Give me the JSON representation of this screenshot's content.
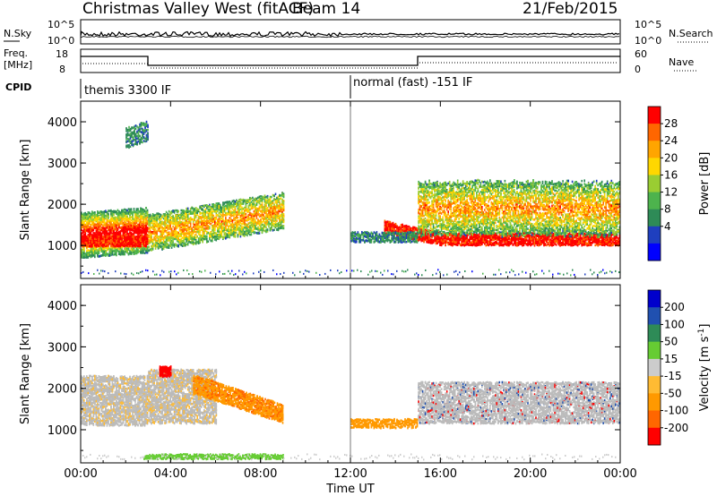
{
  "header": {
    "station": "Christmas Valley West (fitACF)",
    "beam": "Beam 14",
    "date": "21/Feb/2015"
  },
  "noise_panel": {
    "left_label": "N.Sky",
    "right_label": "N.Search",
    "left_ticks": [
      "10^5",
      "10^0"
    ],
    "right_ticks": [
      "10^5",
      "10^0"
    ]
  },
  "freq_panel": {
    "left_label_1": "Freq.",
    "left_label_2": "[MHz]",
    "right_label": "Nave",
    "left_ticks": [
      "18",
      "8"
    ],
    "right_ticks": [
      "60",
      "0"
    ]
  },
  "cpid": {
    "label": "CPID",
    "segments": [
      {
        "name": "themis 3300 IF",
        "start_hour": 0
      },
      {
        "name": "normal (fast) -151 IF",
        "start_hour": 12
      }
    ]
  },
  "chart_data": [
    {
      "type": "heatmap",
      "title": "",
      "xlabel": "Time UT",
      "ylabel": "Slant Range [km]",
      "xlim": [
        0,
        24
      ],
      "ylim": [
        200,
        4500
      ],
      "x_ticks": [
        "00:00",
        "04:00",
        "08:00",
        "12:00",
        "16:00",
        "20:00",
        "00:00"
      ],
      "y_ticks": [
        1000,
        2000,
        3000,
        4000
      ],
      "colorbar": {
        "label": "Power [dB]",
        "ticks": [
          "28",
          "24",
          "20",
          "16",
          "12",
          "8",
          "4"
        ],
        "colors": [
          "#0000ff",
          "#1f3fbf",
          "#2e8b57",
          "#4db34d",
          "#9acd32",
          "#ffd700",
          "#ffa500",
          "#ff6600",
          "#ff0000"
        ]
      }
    },
    {
      "type": "heatmap",
      "title": "",
      "xlabel": "Time UT",
      "ylabel": "Slant Range [km]",
      "xlim": [
        0,
        24
      ],
      "ylim": [
        200,
        4500
      ],
      "x_ticks": [
        "00:00",
        "04:00",
        "08:00",
        "12:00",
        "16:00",
        "20:00",
        "00:00"
      ],
      "y_ticks": [
        1000,
        2000,
        3000,
        4000
      ],
      "colorbar": {
        "label": "Velocity [m s",
        "label_sup": "-1",
        "label_close": "]",
        "ticks": [
          "200",
          "100",
          "50",
          "15",
          "-15",
          "-50",
          "-100",
          "-200"
        ],
        "colors": [
          "#ff0000",
          "#ff6600",
          "#ff9900",
          "#ffbb33",
          "#cccccc",
          "#66cc33",
          "#2e8b57",
          "#2050b0",
          "#0000cc"
        ]
      }
    }
  ],
  "colors": {
    "ground_scatter": "#bbbbbb",
    "axis": "#000000"
  }
}
